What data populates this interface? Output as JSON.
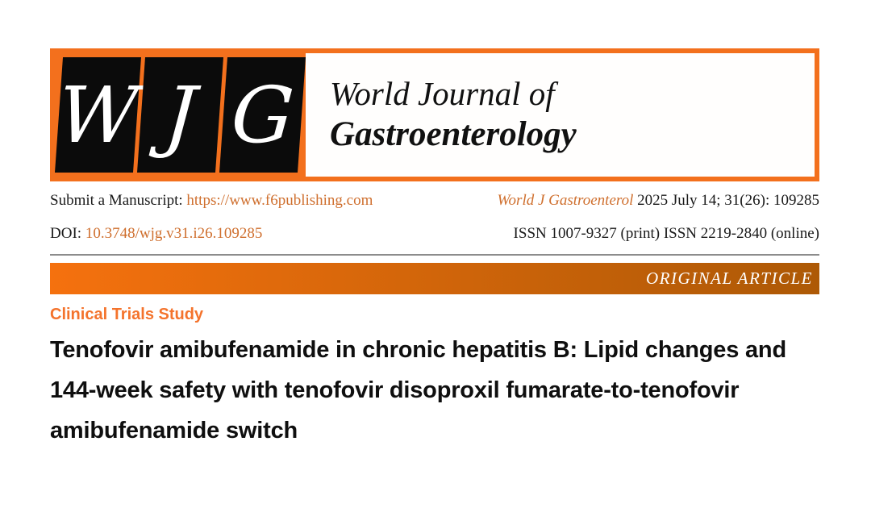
{
  "logo": {
    "letters": [
      "W",
      "J",
      "G"
    ]
  },
  "masthead": {
    "title_line1": "World Journal of",
    "title_line2": "Gastroenterology"
  },
  "meta": {
    "submit_label": "Submit a Manuscript: ",
    "submit_url": "https://www.f6publishing.com",
    "citation_journal": "World J Gastroenterol",
    "citation_rest": " 2025 July 14; 31(26): 109285",
    "doi_label": "DOI: ",
    "doi_value": "10.3748/wjg.v31.i26.109285",
    "issn": "ISSN 1007-9327 (print) ISSN 2219-2840 (online)"
  },
  "section_bar": {
    "label": "ORIGINAL ARTICLE"
  },
  "article": {
    "category": "Clinical Trials Study",
    "title_lines": [
      "Tenofovir amibufenamide in chronic hepatitis B: Lipid changes and",
      "144-week safety with tenofovir disoproxil fumarate-to-tenofovir",
      "amibufenamide switch"
    ]
  },
  "colors": {
    "accent_orange": "#f3701d",
    "link_orange": "#cf6f2e",
    "category_orange": "#f4732c",
    "bar_gradient_left": "#f5710e",
    "bar_gradient_right": "#ad5906",
    "logo_box_black": "#0b0b0b",
    "rule_gray": "#8c8c8c"
  }
}
